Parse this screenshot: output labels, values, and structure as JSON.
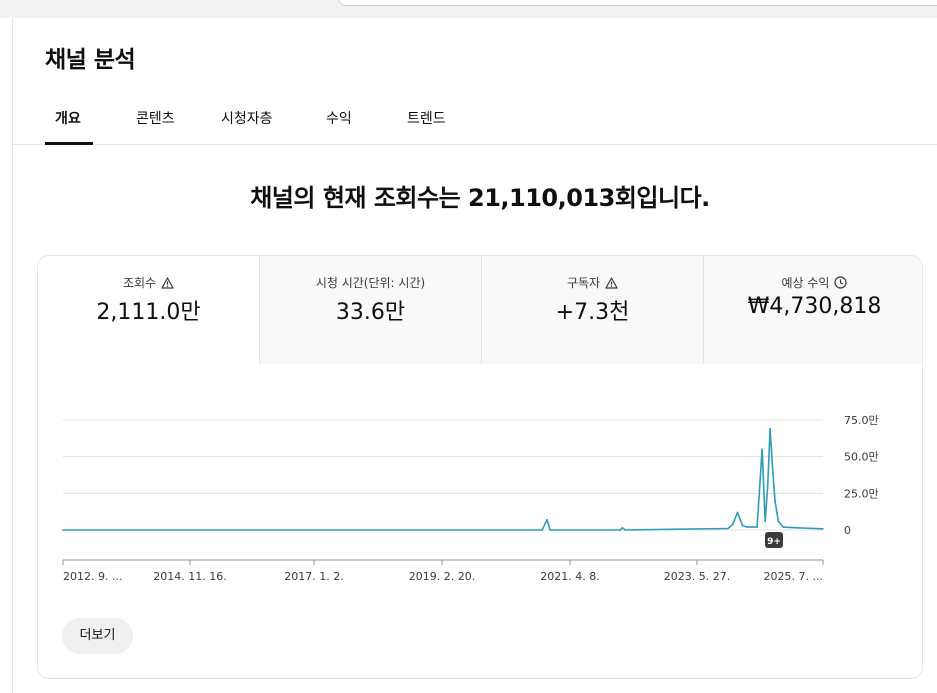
{
  "page": {
    "title": "채널 분석"
  },
  "tabs": [
    {
      "label": "개요"
    },
    {
      "label": "콘텐츠"
    },
    {
      "label": "시청자층"
    },
    {
      "label": "수익"
    },
    {
      "label": "트렌드"
    }
  ],
  "headline": "채널의 현재 조회수는 21,110,013회입니다.",
  "metrics": [
    {
      "label": "조회수",
      "value": "2,111.0만",
      "icon": "warning-icon"
    },
    {
      "label": "시청 시간(단위: 시간)",
      "value": "33.6만",
      "icon": ""
    },
    {
      "label": "구독자",
      "value": "+7.3천",
      "icon": "warning-icon"
    },
    {
      "label": "예상 수익",
      "value": "₩4,730,818",
      "icon": "clock-icon"
    }
  ],
  "more_button": "더보기",
  "chart_data": {
    "type": "line",
    "x_tick_labels": [
      "2012. 9. ...",
      "2014. 11. 16.",
      "2017. 1. 2.",
      "2019. 2. 20.",
      "2021. 4. 8.",
      "2023. 5. 27.",
      "2025. 7. ..."
    ],
    "y_tick_labels": [
      "75.0만",
      "50.0만",
      "25.0만",
      "0"
    ],
    "ylim": [
      0,
      750000
    ],
    "grid": true,
    "series_color": "#2e9cba",
    "points": [
      {
        "x": "2012-09-01",
        "y": 0
      },
      {
        "x": "2020-11-01",
        "y": 0
      },
      {
        "x": "2020-12-01",
        "y": 70000
      },
      {
        "x": "2020-12-20",
        "y": 0
      },
      {
        "x": "2022-03-01",
        "y": 0
      },
      {
        "x": "2022-03-15",
        "y": 15000
      },
      {
        "x": "2022-04-01",
        "y": 0
      },
      {
        "x": "2024-01-01",
        "y": 10000
      },
      {
        "x": "2024-02-01",
        "y": 40000
      },
      {
        "x": "2024-03-01",
        "y": 120000
      },
      {
        "x": "2024-04-01",
        "y": 30000
      },
      {
        "x": "2024-05-01",
        "y": 20000
      },
      {
        "x": "2024-07-01",
        "y": 20000
      },
      {
        "x": "2024-08-01",
        "y": 550000
      },
      {
        "x": "2024-08-20",
        "y": 60000
      },
      {
        "x": "2024-09-05",
        "y": 300000
      },
      {
        "x": "2024-09-20",
        "y": 690000
      },
      {
        "x": "2024-10-05",
        "y": 420000
      },
      {
        "x": "2024-10-20",
        "y": 200000
      },
      {
        "x": "2024-11-10",
        "y": 60000
      },
      {
        "x": "2024-12-10",
        "y": 20000
      },
      {
        "x": "2025-03-01",
        "y": 15000
      },
      {
        "x": "2025-07-01",
        "y": 10000
      },
      {
        "x": "2025-08-15",
        "y": 8000
      }
    ],
    "marker_badge": "9+"
  }
}
